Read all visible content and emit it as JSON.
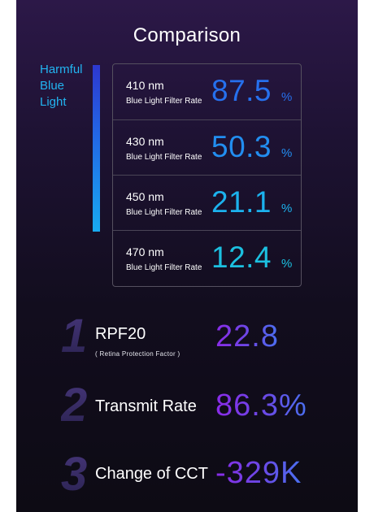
{
  "title": "Comparison",
  "side_label": [
    "Harmful",
    "Blue",
    "Light"
  ],
  "filter_rows": [
    {
      "wavelength": "410 nm",
      "caption": "Blue Light Filter Rate",
      "value": "87.5",
      "unit": "%"
    },
    {
      "wavelength": "430 nm",
      "caption": "Blue Light Filter Rate",
      "value": "50.3",
      "unit": "%"
    },
    {
      "wavelength": "450 nm",
      "caption": "Blue Light Filter Rate",
      "value": "21.1",
      "unit": "%"
    },
    {
      "wavelength": "470 nm",
      "caption": "Blue Light Filter Rate",
      "value": "12.4",
      "unit": "%"
    }
  ],
  "metrics": [
    {
      "index": "1",
      "label": "RPF20",
      "note": "( Retina Protection Factor )",
      "value": "22.8"
    },
    {
      "index": "2",
      "label": "Transmit Rate",
      "note": "",
      "value": "86.3%"
    },
    {
      "index": "3",
      "label": "Change of CCT",
      "note": "",
      "value": "-329K"
    }
  ],
  "colors": {
    "row_value_colors": [
      "#2670ee",
      "#228ef0",
      "#1cb2ee",
      "#1cc0e0"
    ],
    "side_label": "#22b4f0"
  }
}
